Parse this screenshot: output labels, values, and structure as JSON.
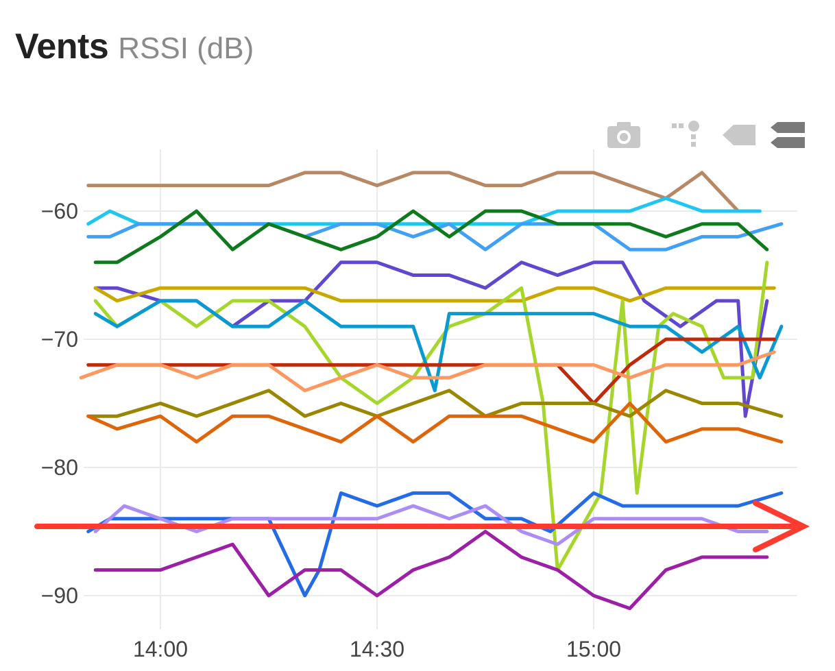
{
  "header": {
    "title": "Vents",
    "subtitle": "RSSI (dB)"
  },
  "toolbar": {
    "icons": [
      "camera-icon",
      "compare-hover-icon",
      "closest-hover-icon",
      "toggle-spikes-icon"
    ]
  },
  "chart_data": {
    "type": "line",
    "title": "Vents",
    "subtitle": "RSSI (dB)",
    "xlabel": "",
    "ylabel": "",
    "x_ticks": [
      "14:00",
      "14:30",
      "15:00"
    ],
    "x_tick_minutes": [
      840,
      870,
      900
    ],
    "xlim": [
      829,
      926
    ],
    "y_ticks": [
      -60,
      -70,
      -80,
      -90
    ],
    "ylim": [
      -92.5,
      -55
    ],
    "grid": true,
    "legend": "none",
    "series": [
      {
        "color": "#B88764",
        "x": [
          830,
          835,
          840,
          845,
          850,
          855,
          860,
          865,
          870,
          875,
          880,
          885,
          890,
          895,
          900,
          905,
          910,
          915,
          920,
          923
        ],
        "y": [
          -58,
          -58,
          -58,
          -58,
          -58,
          -58,
          -57,
          -57,
          -58,
          -57,
          -57,
          -58,
          -58,
          -57,
          -57,
          -58,
          -59,
          -57,
          -60,
          -60
        ]
      },
      {
        "color": "#1FC6F2",
        "x": [
          830,
          833,
          837,
          840,
          845,
          850,
          855,
          860,
          865,
          870,
          875,
          880,
          885,
          890,
          895,
          900,
          905,
          910,
          915,
          920,
          923
        ],
        "y": [
          -61,
          -60,
          -61,
          -61,
          -61,
          -61,
          -61,
          -61,
          -61,
          -61,
          -61,
          -61,
          -61,
          -61,
          -60,
          -60,
          -60,
          -59,
          -60,
          -60,
          -60
        ]
      },
      {
        "color": "#3FA0F5",
        "x": [
          830,
          833,
          837,
          840,
          845,
          850,
          855,
          860,
          865,
          870,
          875,
          880,
          885,
          890,
          895,
          900,
          905,
          910,
          915,
          920,
          926
        ],
        "y": [
          -62,
          -62,
          -61,
          -61,
          -61,
          -61,
          -61,
          -62,
          -61,
          -61,
          -62,
          -61,
          -63,
          -61,
          -61,
          -61,
          -63,
          -63,
          -62,
          -62,
          -61
        ]
      },
      {
        "color": "#0E7A1D",
        "x": [
          831,
          834,
          840,
          845,
          850,
          855,
          860,
          865,
          870,
          875,
          880,
          885,
          890,
          895,
          900,
          905,
          910,
          915,
          920,
          924
        ],
        "y": [
          -64,
          -64,
          -62,
          -60,
          -63,
          -61,
          -62,
          -63,
          -62,
          -60,
          -62,
          -60,
          -60,
          -61,
          -61,
          -61,
          -62,
          -61,
          -61,
          -63
        ]
      },
      {
        "color": "#6146CF",
        "x": [
          831,
          834,
          840,
          845,
          850,
          855,
          860,
          865,
          870,
          875,
          880,
          885,
          890,
          895,
          900,
          904,
          907,
          912,
          917,
          920,
          921,
          924
        ],
        "y": [
          -66,
          -66,
          -67,
          -67,
          -69,
          -67,
          -67,
          -64,
          -64,
          -65,
          -65,
          -66,
          -64,
          -65,
          -64,
          -64,
          -67,
          -69,
          -67,
          -67,
          -76,
          -67
        ]
      },
      {
        "color": "#C7A900",
        "x": [
          831,
          834,
          840,
          845,
          850,
          855,
          860,
          865,
          870,
          875,
          880,
          885,
          890,
          895,
          900,
          905,
          910,
          915,
          920,
          925
        ],
        "y": [
          -66,
          -67,
          -66,
          -66,
          -66,
          -66,
          -66,
          -67,
          -67,
          -67,
          -67,
          -67,
          -67,
          -66,
          -66,
          -67,
          -66,
          -66,
          -66,
          -66
        ]
      },
      {
        "color": "#A6D62C",
        "x": [
          831,
          834,
          840,
          845,
          850,
          855,
          860,
          865,
          870,
          875,
          880,
          885,
          890,
          893,
          895,
          899,
          901,
          904,
          906,
          909,
          911,
          915,
          918,
          922,
          924
        ],
        "y": [
          -67,
          -69,
          -67,
          -69,
          -67,
          -67,
          -69,
          -73,
          -75,
          -73,
          -69,
          -68,
          -66,
          -75,
          -88,
          -84,
          -82,
          -67,
          -82,
          -69,
          -68,
          -69,
          -73,
          -73,
          -64
        ]
      },
      {
        "color": "#0A99D0",
        "x": [
          831,
          834,
          840,
          845,
          850,
          855,
          860,
          865,
          870,
          875,
          878,
          880,
          885,
          890,
          895,
          900,
          905,
          910,
          915,
          920,
          923,
          926
        ],
        "y": [
          -68,
          -69,
          -67,
          -67,
          -69,
          -69,
          -67,
          -69,
          -69,
          -69,
          -74,
          -68,
          -68,
          -68,
          -68,
          -68,
          -69,
          -69,
          -71,
          -69,
          -73,
          -69
        ]
      },
      {
        "color": "#C02A0B",
        "x": [
          830,
          835,
          840,
          845,
          850,
          855,
          860,
          865,
          870,
          875,
          880,
          885,
          890,
          895,
          900,
          905,
          910,
          915,
          920,
          925
        ],
        "y": [
          -72,
          -72,
          -72,
          -72,
          -72,
          -72,
          -72,
          -72,
          -72,
          -72,
          -72,
          -72,
          -72,
          -72,
          -75,
          -72,
          -70,
          -70,
          -70,
          -70
        ]
      },
      {
        "color": "#FC9860",
        "x": [
          829,
          834,
          840,
          845,
          850,
          855,
          860,
          865,
          870,
          875,
          880,
          885,
          890,
          895,
          900,
          905,
          910,
          915,
          920,
          925
        ],
        "y": [
          -73,
          -72,
          -72,
          -73,
          -72,
          -72,
          -74,
          -73,
          -72,
          -73,
          -73,
          -72,
          -72,
          -72,
          -72,
          -73,
          -72,
          -72,
          -72,
          -71
        ]
      },
      {
        "color": "#9A8600",
        "x": [
          830,
          834,
          840,
          845,
          850,
          855,
          860,
          865,
          870,
          875,
          880,
          885,
          890,
          895,
          900,
          905,
          910,
          915,
          920,
          926
        ],
        "y": [
          -76,
          -76,
          -75,
          -76,
          -75,
          -74,
          -76,
          -75,
          -76,
          -75,
          -74,
          -76,
          -75,
          -75,
          -75,
          -76,
          -74,
          -75,
          -75,
          -76
        ]
      },
      {
        "color": "#DE6509",
        "x": [
          830,
          834,
          840,
          845,
          850,
          855,
          860,
          865,
          870,
          875,
          880,
          885,
          890,
          895,
          900,
          905,
          910,
          915,
          920,
          926
        ],
        "y": [
          -76,
          -77,
          -76,
          -78,
          -76,
          -76,
          -77,
          -78,
          -76,
          -78,
          -76,
          -76,
          -76,
          -77,
          -78,
          -75,
          -78,
          -77,
          -77,
          -78
        ]
      },
      {
        "color": "#246BE8",
        "x": [
          830,
          833,
          840,
          845,
          850,
          855,
          860,
          862,
          865,
          870,
          875,
          880,
          885,
          890,
          894,
          900,
          904,
          910,
          915,
          920,
          926
        ],
        "y": [
          -85,
          -84,
          -84,
          -84,
          -84,
          -84,
          -90,
          -88,
          -82,
          -83,
          -82,
          -82,
          -84,
          -84,
          -85,
          -82,
          -83,
          -83,
          -83,
          -83,
          -82
        ]
      },
      {
        "color": "#AC8CF5",
        "x": [
          831,
          835,
          840,
          845,
          850,
          855,
          860,
          865,
          870,
          875,
          880,
          885,
          890,
          895,
          900,
          905,
          910,
          915,
          920,
          924
        ],
        "y": [
          -85,
          -83,
          -84,
          -85,
          -84,
          -84,
          -84,
          -84,
          -84,
          -83,
          -84,
          -83,
          -85,
          -86,
          -84,
          -84,
          -84,
          -84,
          -85,
          -85
        ]
      },
      {
        "color": "#9C1FA5",
        "x": [
          831,
          835,
          840,
          845,
          850,
          855,
          860,
          865,
          870,
          875,
          880,
          885,
          890,
          895,
          900,
          905,
          910,
          915,
          920,
          924
        ],
        "y": [
          -88,
          -88,
          -88,
          -87,
          -86,
          -90,
          -88,
          -88,
          -90,
          -88,
          -87,
          -85,
          -87,
          -88,
          -90,
          -91,
          -88,
          -87,
          -87,
          -87
        ]
      }
    ]
  },
  "annotation": {
    "color": "#FF3B30",
    "y_value": -84.6,
    "x_start": 829,
    "x_end": 926
  }
}
